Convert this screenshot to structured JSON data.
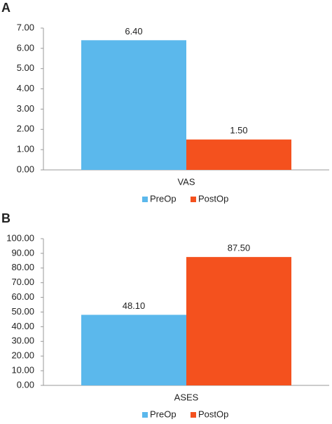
{
  "chart_data": [
    {
      "type": "bar",
      "panel": "A",
      "categories": [
        "VAS"
      ],
      "series": [
        {
          "name": "PreOp",
          "color": "#5bb8ec",
          "values": [
            6.4
          ],
          "value_labels": [
            "6.40"
          ]
        },
        {
          "name": "PostOp",
          "color": "#f4511e",
          "values": [
            1.5
          ],
          "value_labels": [
            "1.50"
          ]
        }
      ],
      "ylim": [
        0,
        7
      ],
      "yticks": [
        {
          "value": 0,
          "label": "0.00"
        },
        {
          "value": 1,
          "label": "1.00"
        },
        {
          "value": 2,
          "label": "2.00"
        },
        {
          "value": 3,
          "label": "3.00"
        },
        {
          "value": 4,
          "label": "4.00"
        },
        {
          "value": 5,
          "label": "5.00"
        },
        {
          "value": 6,
          "label": "6.00"
        },
        {
          "value": 7,
          "label": "7.00"
        }
      ],
      "legend": "bottom"
    },
    {
      "type": "bar",
      "panel": "B",
      "categories": [
        "ASES"
      ],
      "series": [
        {
          "name": "PreOp",
          "color": "#5bb8ec",
          "values": [
            48.1
          ],
          "value_labels": [
            "48.10"
          ]
        },
        {
          "name": "PostOp",
          "color": "#f4511e",
          "values": [
            87.5
          ],
          "value_labels": [
            "87.50"
          ]
        }
      ],
      "ylim": [
        0,
        100
      ],
      "yticks": [
        {
          "value": 0,
          "label": "0.00"
        },
        {
          "value": 10,
          "label": "10.00"
        },
        {
          "value": 20,
          "label": "20.00"
        },
        {
          "value": 30,
          "label": "30.00"
        },
        {
          "value": 40,
          "label": "40.00"
        },
        {
          "value": 50,
          "label": "50.00"
        },
        {
          "value": 60,
          "label": "60.00"
        },
        {
          "value": 70,
          "label": "70.00"
        },
        {
          "value": 80,
          "label": "80.00"
        },
        {
          "value": 90,
          "label": "90.00"
        },
        {
          "value": 100,
          "label": "100.00"
        }
      ],
      "legend": "bottom"
    }
  ]
}
